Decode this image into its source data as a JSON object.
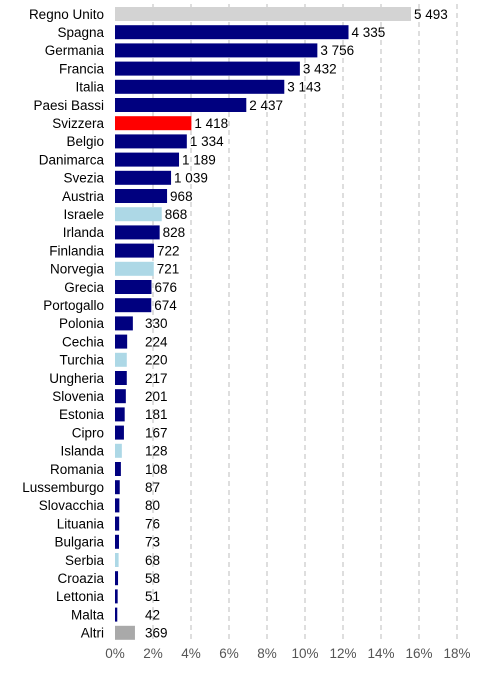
{
  "chart_data": {
    "type": "bar",
    "orientation": "horizontal",
    "title": "",
    "xlabel": "",
    "ylabel": "",
    "xlim": [
      0,
      18
    ],
    "x_ticks": [
      "0%",
      "2%",
      "4%",
      "6%",
      "8%",
      "10%",
      "12%",
      "14%",
      "16%",
      "18%"
    ],
    "grid": "vertical dashed",
    "legend": "none",
    "colors": {
      "default": "#00007f",
      "highlight": "#ff0000",
      "light": "#add8e6",
      "grey": "#d3d3d3",
      "dark_grey": "#a9a9a9"
    },
    "categories": [
      "Regno Unito",
      "Spagna",
      "Germania",
      "Francia",
      "Italia",
      "Paesi Bassi",
      "Svizzera",
      "Belgio",
      "Danimarca",
      "Svezia",
      "Austria",
      "Israele",
      "Irlanda",
      "Finlandia",
      "Norvegia",
      "Grecia",
      "Portogallo",
      "Polonia",
      "Cechia",
      "Turchia",
      "Ungheria",
      "Slovenia",
      "Estonia",
      "Cipro",
      "Islanda",
      "Romania",
      "Lussemburgo",
      "Slovacchia",
      "Lituania",
      "Bulgaria",
      "Serbia",
      "Croazia",
      "Lettonia",
      "Malta",
      "Altri"
    ],
    "values": [
      5493,
      4335,
      3756,
      3432,
      3143,
      2437,
      1418,
      1334,
      1189,
      1039,
      968,
      868,
      828,
      722,
      721,
      676,
      674,
      330,
      224,
      220,
      217,
      201,
      181,
      167,
      128,
      108,
      87,
      80,
      76,
      73,
      68,
      58,
      51,
      42,
      369
    ],
    "value_labels": [
      "5 493",
      "4 335",
      "3 756",
      "3 432",
      "3 143",
      "2 437",
      "1 418",
      "1 334",
      "1 189",
      "1 039",
      "968",
      "868",
      "828",
      "722",
      "721",
      "676",
      "674",
      "330",
      "224",
      "220",
      "217",
      "201",
      "181",
      "167",
      "128",
      "108",
      "87",
      "80",
      "76",
      "73",
      "68",
      "58",
      "51",
      "42",
      "369"
    ],
    "percent": [
      15.58,
      12.29,
      10.65,
      9.73,
      8.91,
      6.91,
      4.02,
      3.78,
      3.37,
      2.95,
      2.74,
      2.46,
      2.35,
      2.05,
      2.04,
      1.92,
      1.91,
      0.94,
      0.64,
      0.62,
      0.62,
      0.57,
      0.51,
      0.47,
      0.36,
      0.31,
      0.25,
      0.23,
      0.22,
      0.21,
      0.19,
      0.16,
      0.14,
      0.12,
      1.05
    ],
    "bar_colors": [
      "grey",
      "default",
      "default",
      "default",
      "default",
      "default",
      "highlight",
      "default",
      "default",
      "default",
      "default",
      "light",
      "default",
      "default",
      "light",
      "default",
      "default",
      "default",
      "default",
      "light",
      "default",
      "default",
      "default",
      "default",
      "light",
      "default",
      "default",
      "default",
      "default",
      "default",
      "light",
      "default",
      "default",
      "default",
      "dark_grey"
    ]
  }
}
